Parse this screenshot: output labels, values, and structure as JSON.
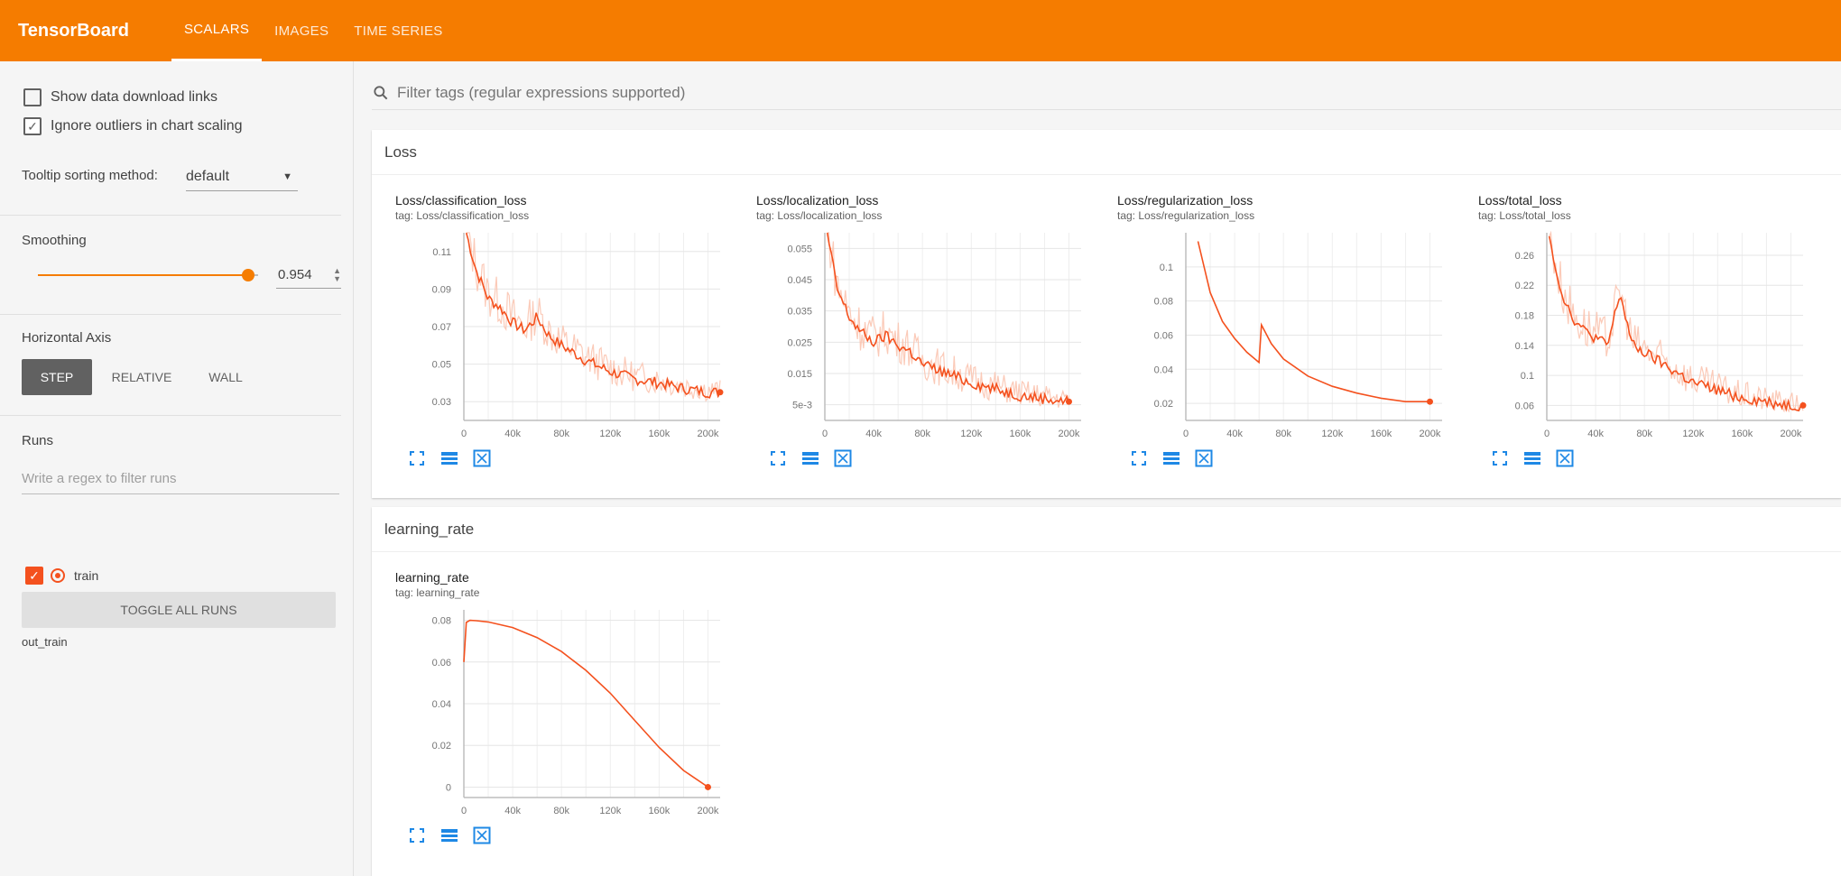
{
  "topbar": {
    "brand": "TensorBoard",
    "tabs": [
      {
        "label": "SCALARS",
        "active": true
      },
      {
        "label": "IMAGES",
        "active": false
      },
      {
        "label": "TIME SERIES",
        "active": false
      }
    ]
  },
  "sidebar": {
    "show_download": {
      "label": "Show data download links",
      "checked": false
    },
    "ignore_outliers": {
      "label": "Ignore outliers in chart scaling",
      "checked": true
    },
    "tooltip_label": "Tooltip sorting method:",
    "tooltip_value": "default",
    "smoothing_label": "Smoothing",
    "smoothing_value": "0.954",
    "smoothing_fraction": 0.954,
    "haxis_label": "Horizontal Axis",
    "haxis_options": [
      "STEP",
      "RELATIVE",
      "WALL"
    ],
    "runs_label": "Runs",
    "runs_placeholder": "Write a regex to filter runs",
    "run_name": "train",
    "toggle_label": "TOGGLE ALL RUNS",
    "run_dir": "out_train"
  },
  "main": {
    "filter_placeholder": "Filter tags (regular expressions supported)",
    "sections": [
      {
        "title": "Loss"
      },
      {
        "title": "learning_rate"
      }
    ]
  },
  "colors": {
    "accent": "#f57c00",
    "series": "#f4511e",
    "series_faint": "#fbc4b0"
  },
  "chart_data": [
    {
      "type": "line",
      "title": "Loss/classification_loss",
      "tag": "tag: Loss/classification_loss",
      "xticks": [
        "0",
        "40k",
        "80k",
        "120k",
        "160k",
        "200k"
      ],
      "yticks": [
        "0.03",
        "0.05",
        "0.07",
        "0.09",
        "0.11"
      ],
      "x": [
        2000,
        10000,
        20000,
        30000,
        40000,
        50000,
        60000,
        70000,
        80000,
        100000,
        120000,
        140000,
        160000,
        180000,
        200000,
        210000
      ],
      "y": [
        0.12,
        0.1,
        0.085,
        0.08,
        0.072,
        0.068,
        0.075,
        0.065,
        0.06,
        0.052,
        0.046,
        0.042,
        0.04,
        0.037,
        0.035,
        0.035
      ],
      "ylim": [
        0.02,
        0.12
      ],
      "xlim": [
        0,
        210000
      ]
    },
    {
      "type": "line",
      "title": "Loss/localization_loss",
      "tag": "tag: Loss/localization_loss",
      "xticks": [
        "0",
        "40k",
        "80k",
        "120k",
        "160k",
        "200k"
      ],
      "yticks": [
        "5e-3",
        "0.015",
        "0.025",
        "0.035",
        "0.045",
        "0.055"
      ],
      "x": [
        2000,
        10000,
        20000,
        30000,
        40000,
        50000,
        60000,
        70000,
        80000,
        100000,
        120000,
        140000,
        160000,
        180000,
        200000
      ],
      "y": [
        0.06,
        0.042,
        0.033,
        0.028,
        0.025,
        0.027,
        0.024,
        0.022,
        0.018,
        0.015,
        0.012,
        0.01,
        0.008,
        0.007,
        0.006
      ],
      "ylim": [
        0,
        0.06
      ],
      "xlim": [
        0,
        210000
      ]
    },
    {
      "type": "line",
      "title": "Loss/regularization_loss",
      "tag": "tag: Loss/regularization_loss",
      "xticks": [
        "0",
        "40k",
        "80k",
        "120k",
        "160k",
        "200k"
      ],
      "yticks": [
        "0.02",
        "0.04",
        "0.06",
        "0.08",
        "0.1"
      ],
      "x": [
        10000,
        20000,
        30000,
        40000,
        50000,
        60000,
        62000,
        70000,
        80000,
        100000,
        120000,
        140000,
        160000,
        180000,
        200000
      ],
      "y": [
        0.115,
        0.085,
        0.068,
        0.058,
        0.05,
        0.044,
        0.066,
        0.055,
        0.046,
        0.036,
        0.03,
        0.026,
        0.023,
        0.021,
        0.021
      ],
      "ylim": [
        0.01,
        0.12
      ],
      "xlim": [
        0,
        210000
      ]
    },
    {
      "type": "line",
      "title": "Loss/total_loss",
      "tag": "tag: Loss/total_loss",
      "xticks": [
        "0",
        "40k",
        "80k",
        "120k",
        "160k",
        "200k"
      ],
      "yticks": [
        "0.06",
        "0.1",
        "0.14",
        "0.18",
        "0.22",
        "0.26"
      ],
      "x": [
        2000,
        10000,
        20000,
        30000,
        40000,
        50000,
        60000,
        70000,
        80000,
        100000,
        120000,
        140000,
        160000,
        180000,
        200000,
        210000
      ],
      "y": [
        0.29,
        0.22,
        0.18,
        0.16,
        0.15,
        0.14,
        0.21,
        0.14,
        0.13,
        0.11,
        0.09,
        0.08,
        0.07,
        0.065,
        0.06,
        0.06
      ],
      "ylim": [
        0.04,
        0.29
      ],
      "xlim": [
        0,
        210000
      ]
    },
    {
      "type": "line",
      "title": "learning_rate",
      "tag": "tag: learning_rate",
      "xticks": [
        "0",
        "40k",
        "80k",
        "120k",
        "160k",
        "200k"
      ],
      "yticks": [
        "0",
        "0.02",
        "0.04",
        "0.06",
        "0.08"
      ],
      "x": [
        0,
        2000,
        5000,
        10000,
        20000,
        40000,
        60000,
        80000,
        100000,
        120000,
        140000,
        160000,
        180000,
        200000
      ],
      "y": [
        0.06,
        0.079,
        0.08,
        0.0798,
        0.0792,
        0.0765,
        0.0717,
        0.065,
        0.056,
        0.045,
        0.032,
        0.019,
        0.008,
        0.0
      ],
      "ylim": [
        -0.005,
        0.085
      ],
      "xlim": [
        0,
        210000
      ]
    }
  ]
}
